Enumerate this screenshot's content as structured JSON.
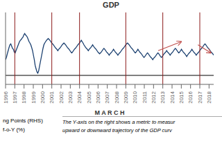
{
  "chart_data": {
    "type": "line",
    "title": "GDP",
    "xlabel": "M A R C H",
    "xlim": [
      1996,
      2018.5
    ],
    "xticks": [
      1996,
      1997,
      1998,
      1999,
      2000,
      2001,
      2002,
      2003,
      2004,
      2005,
      2006,
      2007,
      2008,
      2009,
      2010,
      2011,
      2012,
      2013,
      2014,
      2015,
      2016,
      2017,
      2018
    ],
    "ylim": [
      -2,
      14
    ],
    "tick_labels": "x",
    "grid": false,
    "x": [
      1996,
      1996.094,
      1996.188,
      1996.282,
      1996.377,
      1996.471,
      1996.565,
      1996.659,
      1996.753,
      1996.847,
      1996.941,
      1997.036,
      1997.13,
      1997.224,
      1997.318,
      1997.412,
      1997.506,
      1997.6,
      1997.695,
      1997.789,
      1997.883,
      1997.977,
      1998.071,
      1998.165,
      1998.259,
      1998.354,
      1998.448,
      1998.542,
      1998.636,
      1998.73,
      1998.824,
      1998.918,
      1999.013,
      1999.107,
      1999.201,
      1999.295,
      1999.389,
      1999.483,
      1999.577,
      1999.672,
      1999.766,
      1999.86,
      1999.954,
      2000.048,
      2000.142,
      2000.236,
      2000.331,
      2000.425,
      2000.519,
      2000.613,
      2000.707,
      2000.801,
      2000.895,
      2000.99,
      2001.084,
      2001.178,
      2001.272,
      2001.366,
      2001.46,
      2001.554,
      2001.649,
      2001.743,
      2001.837,
      2001.931,
      2002.025,
      2002.119,
      2002.213,
      2002.308,
      2002.402,
      2002.496,
      2002.59,
      2002.684,
      2002.778,
      2002.872,
      2002.967,
      2003.061,
      2003.155,
      2003.249,
      2003.343,
      2003.437,
      2003.531,
      2003.626,
      2003.72,
      2003.814,
      2003.908,
      2004.002,
      2004.096,
      2004.19,
      2004.285,
      2004.379,
      2004.473,
      2004.567,
      2004.661,
      2004.755,
      2004.849,
      2004.944,
      2005.038,
      2005.132,
      2005.226,
      2005.32,
      2005.414,
      2005.508,
      2005.603,
      2005.697,
      2005.791,
      2005.885,
      2005.979,
      2006.073,
      2006.167,
      2006.262,
      2006.356,
      2006.45,
      2006.544,
      2006.638,
      2006.732,
      2006.826,
      2006.921,
      2007.015,
      2007.109,
      2007.203,
      2007.297,
      2007.391,
      2007.485,
      2007.579,
      2007.674,
      2007.768,
      2007.862,
      2007.956,
      2008.05,
      2008.144,
      2008.238,
      2008.333,
      2008.427,
      2008.521,
      2008.615,
      2008.709,
      2008.803,
      2008.897,
      2008.992,
      2009.086,
      2009.18,
      2009.274,
      2009.368,
      2009.462,
      2009.556,
      2009.651,
      2009.745,
      2009.839,
      2009.933,
      2010.027,
      2010.121,
      2010.215,
      2010.31,
      2010.404,
      2010.498,
      2010.592,
      2010.686,
      2010.78,
      2010.874,
      2010.969,
      2011.063,
      2011.157,
      2011.251,
      2011.345,
      2011.439,
      2011.533,
      2011.628,
      2011.722,
      2011.816,
      2011.91,
      2012.004,
      2012.098,
      2012.192,
      2012.287,
      2012.381,
      2012.475,
      2012.569,
      2012.663,
      2012.757,
      2012.851,
      2012.946,
      2013.04,
      2013.134,
      2013.228,
      2013.322,
      2013.416,
      2013.51,
      2013.605,
      2013.699,
      2013.793,
      2013.887,
      2013.981,
      2014.075,
      2014.169,
      2014.264,
      2014.358,
      2014.452,
      2014.546,
      2014.64,
      2014.734,
      2014.828,
      2014.923,
      2015.017,
      2015.111,
      2015.205,
      2015.299,
      2015.393,
      2015.487,
      2015.582,
      2015.676,
      2015.77,
      2015.864,
      2015.958,
      2016.052,
      2016.146,
      2016.241,
      2016.335,
      2016.429,
      2016.523,
      2016.617,
      2016.711,
      2016.805,
      2016.9,
      2016.994,
      2017.088,
      2017.182,
      2017.276,
      2017.37,
      2017.464,
      2017.559,
      2017.653,
      2017.747,
      2017.841,
      2017.935,
      2018.029,
      2018.123,
      2018.218,
      2018.312,
      2018.406,
      2018.5
    ],
    "series": [
      {
        "color": "#1a3f6f",
        "values": [
          3.5,
          4.0,
          4.8,
          5.5,
          6.2,
          6.8,
          7.0,
          6.5,
          6.0,
          5.8,
          5.2,
          5.0,
          5.5,
          6.0,
          6.5,
          7.0,
          7.5,
          7.8,
          8.0,
          8.3,
          8.5,
          9.0,
          9.3,
          9.0,
          8.8,
          8.5,
          8.0,
          7.5,
          7.2,
          6.8,
          6.2,
          5.5,
          4.5,
          3.5,
          2.2,
          1.5,
          0.8,
          0.5,
          1.0,
          2.0,
          3.0,
          4.0,
          5.0,
          6.0,
          6.8,
          7.2,
          7.5,
          7.8,
          8.0,
          8.2,
          8.0,
          7.8,
          7.5,
          7.2,
          7.0,
          6.8,
          6.5,
          6.2,
          6.0,
          5.8,
          5.5,
          5.8,
          6.0,
          6.2,
          6.5,
          6.8,
          7.0,
          7.2,
          7.0,
          6.8,
          6.5,
          6.2,
          6.0,
          5.8,
          5.5,
          5.2,
          5.0,
          5.2,
          5.5,
          5.8,
          6.0,
          6.2,
          6.5,
          6.8,
          7.0,
          7.2,
          7.5,
          7.8,
          7.5,
          7.2,
          6.8,
          6.5,
          6.2,
          6.0,
          5.8,
          5.5,
          5.8,
          6.0,
          6.2,
          6.5,
          6.8,
          6.5,
          6.2,
          6.0,
          5.8,
          5.5,
          5.2,
          5.0,
          4.8,
          5.0,
          5.2,
          5.5,
          5.8,
          6.0,
          5.8,
          5.5,
          5.2,
          5.0,
          4.8,
          4.5,
          4.8,
          5.0,
          5.2,
          5.5,
          5.8,
          5.5,
          5.2,
          5.0,
          4.8,
          4.5,
          4.8,
          5.0,
          5.2,
          5.5,
          5.8,
          6.0,
          6.2,
          6.5,
          6.8,
          7.0,
          7.2,
          7.0,
          6.8,
          6.5,
          6.2,
          6.0,
          5.8,
          5.5,
          5.2,
          5.0,
          5.2,
          5.5,
          5.8,
          5.5,
          5.2,
          5.0,
          4.8,
          4.5,
          4.2,
          4.0,
          4.2,
          4.5,
          4.8,
          5.0,
          4.8,
          4.5,
          4.2,
          4.0,
          3.8,
          3.5,
          3.8,
          4.0,
          4.2,
          4.5,
          4.8,
          5.0,
          4.8,
          4.5,
          4.2,
          4.0,
          4.2,
          4.5,
          4.8,
          5.0,
          5.2,
          5.5,
          5.2,
          5.0,
          4.8,
          4.5,
          4.8,
          5.0,
          5.2,
          5.5,
          5.8,
          6.0,
          5.8,
          5.5,
          5.2,
          5.0,
          5.2,
          5.5,
          5.8,
          5.5,
          5.2,
          5.0,
          4.8,
          4.5,
          4.2,
          4.5,
          4.8,
          5.0,
          5.2,
          5.5,
          5.8,
          5.5,
          5.2,
          5.0,
          4.8,
          4.5,
          4.8,
          5.0,
          5.2,
          5.5,
          5.8,
          6.0,
          6.2,
          6.5,
          6.8,
          7.0,
          6.8,
          6.5,
          6.2,
          6.0,
          5.8,
          5.5,
          5.2,
          5.0,
          4.8,
          4.5
        ]
      }
    ],
    "hlines": [
      {
        "y": 0,
        "color": "#000000"
      }
    ],
    "vlines": {
      "x": [
        1997,
        2001,
        2004,
        2009,
        2013,
        2017
      ],
      "color": "#8b1a1a"
    },
    "arrows": [
      {
        "from": [
          2012.5,
          5.5
        ],
        "to": [
          2015.0,
          7.5
        ],
        "color": "#c0504d"
      },
      {
        "from": [
          2016.8,
          6.8
        ],
        "to": [
          2018.2,
          5.0
        ],
        "color": "#c0504d"
      }
    ],
    "annotations": [
      [
        "ng Points (RHS)",
        "f-o-Y (%)"
      ],
      [
        "The Y-axis on the right shows a metric to measur",
        "upward or downward trajectory of the GDP curv"
      ]
    ]
  }
}
